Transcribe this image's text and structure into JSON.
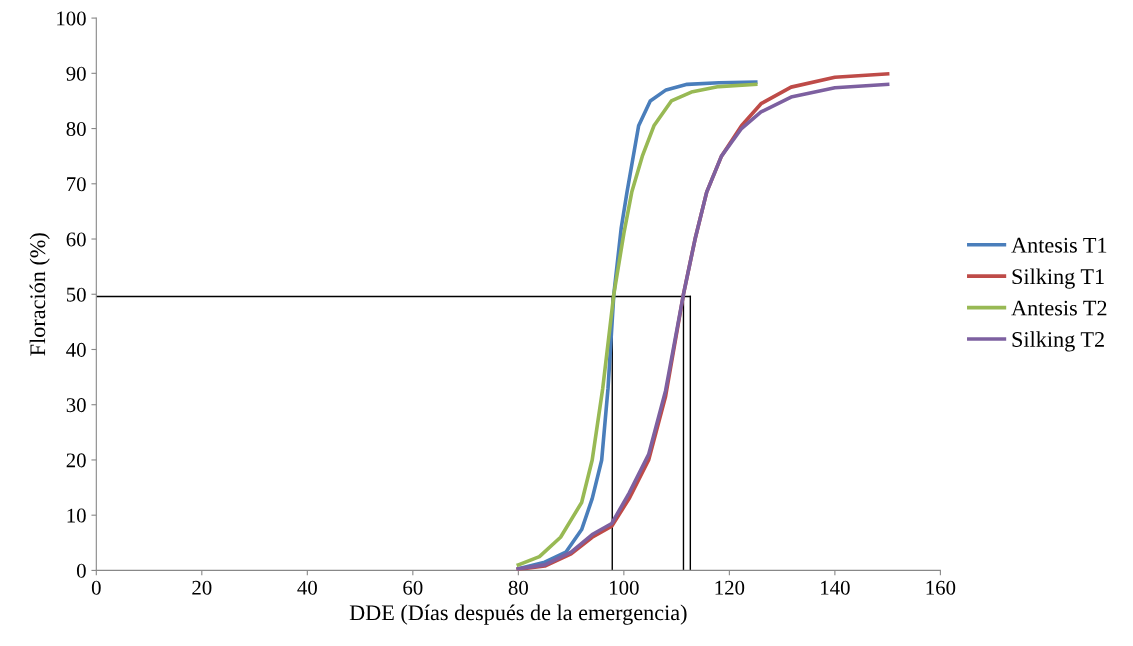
{
  "chart_data": {
    "type": "line",
    "xlabel": "DDE (Días después de la emergencia)",
    "ylabel": "Floración (%)",
    "xlim": [
      0,
      160
    ],
    "xticks": [
      0,
      20,
      40,
      60,
      80,
      100,
      120,
      140,
      160
    ],
    "ylim": [
      0,
      100
    ],
    "yticks": [
      0,
      10,
      20,
      30,
      40,
      50,
      60,
      70,
      80,
      90,
      100
    ],
    "grid": false,
    "legend": "right",
    "marker": "none",
    "line_style": "solid",
    "series": [
      {
        "name": "Antesis T1",
        "color": "#4a7ebb",
        "x": [
          80,
          85,
          89,
          92,
          94,
          95.8,
          97,
          98.1,
          99.5,
          100.6,
          102.8,
          105,
          108,
          112,
          118,
          125
        ],
        "values": [
          0.3,
          1.5,
          3.3,
          7.4,
          13,
          20,
          33,
          50,
          62,
          68.5,
          80.5,
          85,
          87,
          88,
          88.3,
          88.4
        ]
      },
      {
        "name": "Silking T1",
        "color": "#be4b48",
        "x": [
          80,
          85,
          90,
          94,
          97.7,
          101,
          104.7,
          107.9,
          111.3,
          113.5,
          115.7,
          118.5,
          122.3,
          126,
          131.7,
          140,
          150
        ],
        "values": [
          0.2,
          0.8,
          3,
          6,
          8,
          13,
          20,
          31.5,
          50,
          60,
          68.5,
          75,
          80.5,
          84.5,
          87.5,
          89.3,
          89.9
        ]
      },
      {
        "name": "Antesis T2",
        "color": "#98b954",
        "x": [
          80,
          84,
          88,
          92,
          94,
          96,
          98.1,
          100,
          101.5,
          103.5,
          105.7,
          109,
          112.8,
          118,
          125
        ],
        "values": [
          1,
          2.5,
          6,
          12.3,
          20,
          33,
          50,
          61,
          68.5,
          75,
          80.5,
          85,
          86.6,
          87.6,
          88
        ]
      },
      {
        "name": "Silking T2",
        "color": "#7d60a0",
        "x": [
          80,
          85,
          90,
          94,
          97.7,
          101,
          104.7,
          107.9,
          111.3,
          113.5,
          115.7,
          118.5,
          122.3,
          126,
          131.7,
          140,
          150
        ],
        "values": [
          0.3,
          1,
          3.3,
          6.5,
          8.5,
          14,
          21,
          32.5,
          50,
          60,
          68.5,
          75,
          80,
          83,
          85.7,
          87.4,
          88
        ]
      },
      {
        "color": "#000000",
        "x": [
          0,
          112.6
        ],
        "values": [
          49.6,
          49.6
        ]
      },
      {
        "color": "#000000",
        "x": [
          97.8,
          97.8
        ],
        "values": [
          0,
          49.6
        ]
      },
      {
        "color": "#000000",
        "x": [
          111.3,
          111.3
        ],
        "values": [
          0,
          49.6
        ]
      },
      {
        "color": "#000000",
        "x": [
          112.6,
          112.6
        ],
        "values": [
          0,
          49.6
        ]
      }
    ]
  }
}
